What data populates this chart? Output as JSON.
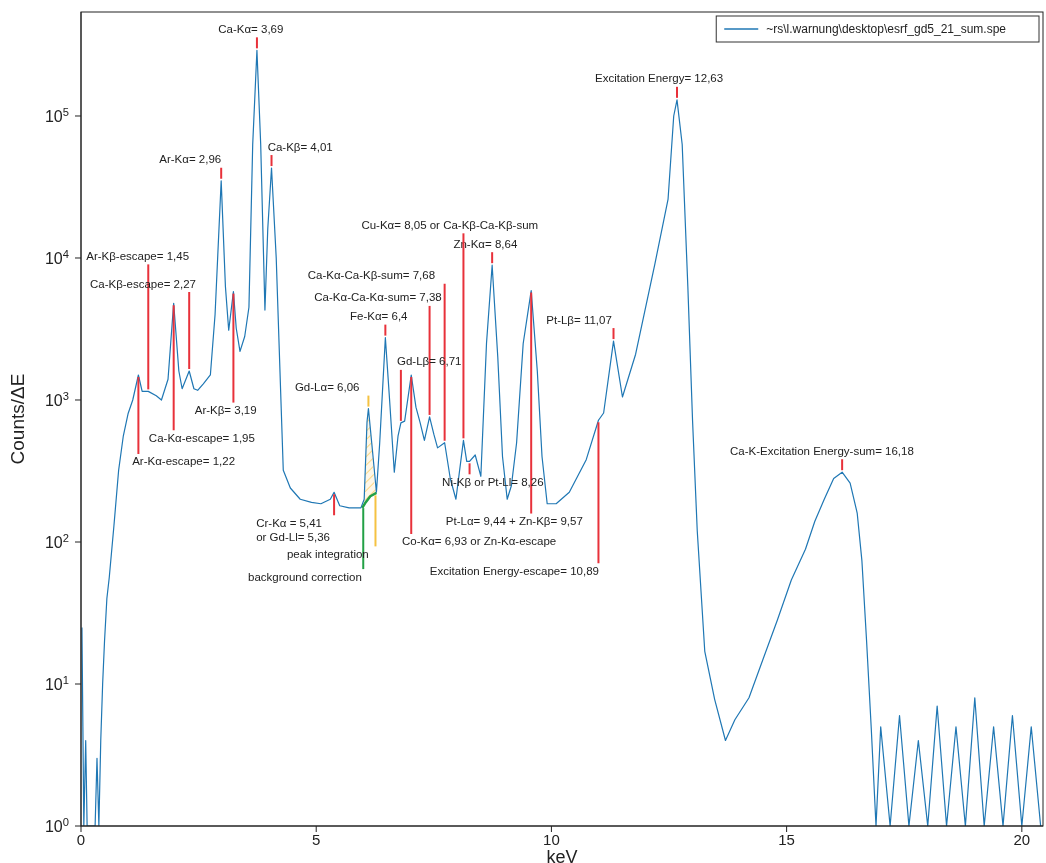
{
  "chart_data": {
    "type": "line",
    "xlabel": "keV",
    "ylabel": "Counts/ΔE",
    "log": true,
    "legend": "top right",
    "xlim": [
      0,
      20.45
    ],
    "xticks": [
      0,
      5,
      10,
      15,
      20
    ],
    "ylim": [
      1,
      540000
    ],
    "yticks": [
      {
        "value": 1,
        "label": "10$^{0}$"
      },
      {
        "value": 10,
        "label": "10$^{1}$"
      },
      {
        "value": 100,
        "label": "10$^{2}$"
      },
      {
        "value": 1000,
        "label": "10$^{3}$"
      },
      {
        "value": 10000,
        "label": "10$^{4}$"
      },
      {
        "value": 100000,
        "label": "10$^{5}$"
      }
    ],
    "series": [
      {
        "name": "~rs\\l.warnung\\desktop\\esrf_gd5_21_sum.spe",
        "color": "#1f77b4",
        "x": [
          0.02,
          0.04,
          0.06,
          0.1,
          0.13,
          0.3,
          0.34,
          0.38,
          0.42,
          0.46,
          0.5,
          0.55,
          0.6,
          0.7,
          0.8,
          0.9,
          1.0,
          1.1,
          1.22,
          1.3,
          1.43,
          1.6,
          1.71,
          1.85,
          1.97,
          2.08,
          2.15,
          2.3,
          2.4,
          2.48,
          2.6,
          2.75,
          2.85,
          2.98,
          3.07,
          3.14,
          3.24,
          3.3,
          3.38,
          3.48,
          3.57,
          3.65,
          3.74,
          3.82,
          3.91,
          3.97,
          4.05,
          4.15,
          4.25,
          4.3,
          4.45,
          4.66,
          4.9,
          5.1,
          5.3,
          5.38,
          5.5,
          5.7,
          5.95,
          6.02,
          6.08,
          6.11,
          6.18,
          6.28,
          6.35,
          6.47,
          6.56,
          6.66,
          6.74,
          6.8,
          6.88,
          7.02,
          7.12,
          7.21,
          7.3,
          7.41,
          7.5,
          7.58,
          7.73,
          7.85,
          7.97,
          8.13,
          8.2,
          8.26,
          8.38,
          8.5,
          8.62,
          8.74,
          8.86,
          8.96,
          9.06,
          9.15,
          9.26,
          9.4,
          9.57,
          9.7,
          9.8,
          9.91,
          10.1,
          10.38,
          10.74,
          11.0,
          11.11,
          11.32,
          11.51,
          11.79,
          12.2,
          12.48,
          12.6,
          12.67,
          12.78,
          12.9,
          13.0,
          13.1,
          13.26,
          13.47,
          13.7,
          13.9,
          14.2,
          14.5,
          14.8,
          15.1,
          15.4,
          15.6,
          15.8,
          16.0,
          16.18,
          16.35,
          16.5,
          16.6,
          16.7,
          16.8,
          16.9,
          17.0,
          17.2,
          17.4,
          17.6,
          17.8,
          18.0,
          18.2,
          18.4,
          18.6,
          18.8,
          19.0,
          19.2,
          19.4,
          19.6,
          19.8,
          20.0,
          20.2,
          20.4
        ],
        "values": [
          25,
          5,
          1,
          4,
          1,
          1,
          3,
          1,
          4,
          10,
          20,
          40,
          56,
          130,
          320,
          560,
          800,
          1000,
          1500,
          1150,
          1150,
          1070,
          1000,
          1400,
          4800,
          1600,
          1200,
          1600,
          1200,
          1170,
          1300,
          1500,
          4000,
          35000,
          6300,
          3100,
          5800,
          3200,
          2200,
          2800,
          4500,
          63000,
          290000,
          63000,
          4300,
          16000,
          43000,
          10000,
          1000,
          320,
          240,
          200,
          190,
          186,
          200,
          224,
          180,
          174,
          174,
          200,
          700,
          870,
          500,
          224,
          500,
          2750,
          1000,
          310,
          560,
          690,
          710,
          1500,
          890,
          690,
          520,
          760,
          575,
          460,
          500,
          280,
          200,
          520,
          370,
          370,
          410,
          290,
          2500,
          8900,
          2000,
          400,
          200,
          250,
          500,
          2500,
          5900,
          1600,
          400,
          186,
          186,
          224,
          380,
          720,
          810,
          2600,
          1050,
          2100,
          9100,
          26000,
          100000,
          130000,
          63000,
          6300,
          720,
          120,
          17,
          7.8,
          4,
          5.6,
          8,
          15,
          28,
          54,
          89,
          140,
          200,
          280,
          310,
          260,
          160,
          74,
          20,
          4.8,
          1,
          5,
          1,
          6,
          1,
          4,
          1,
          7,
          1,
          5,
          1,
          8,
          1,
          5,
          1,
          6,
          1,
          5,
          1
        ]
      },
      {
        "type": "line",
        "color": "#22a045",
        "x": [
          5.98,
          6.05,
          6.15,
          6.28
        ],
        "values": [
          174,
          190,
          210,
          222
        ]
      },
      {
        "type": "area",
        "color": "#f5c242",
        "x": [
          6.02,
          6.08,
          6.11,
          6.18,
          6.24,
          6.28
        ],
        "values": [
          200,
          700,
          870,
          500,
          250,
          225
        ]
      }
    ],
    "annotations": [
      {
        "text": "Ca-Kα= 3,69",
        "x": 3.74,
        "y": 290000
      },
      {
        "text": "Ar-Kβ= 3,19",
        "x": 3.24,
        "y": 5800
      },
      {
        "text": "Ar-Kα= 2,96",
        "x": 2.98,
        "y": 35000
      },
      {
        "text": "Ca-Kβ= 4,01",
        "x": 4.05,
        "y": 43000
      },
      {
        "text": "Ca-Kα-escape= 1,95",
        "x": 1.97,
        "y": 4800
      },
      {
        "text": "Ar-Kβ-escape= 1,45",
        "x": 1.43,
        "y": 1150
      },
      {
        "text": "Ca-Kβ-escape= 2,27",
        "x": 2.3,
        "y": 1600
      },
      {
        "text": "Ar-Kα-escape= 1,22",
        "x": 1.22,
        "y": 1500
      },
      {
        "text": "Fe-Kα= 6,4",
        "x": 6.47,
        "y": 2750
      },
      {
        "text": "Co-Kα= 6,93 or Zn-Kα-escape",
        "x": 7.02,
        "y": 1500
      },
      {
        "text": "Gd-Lα= 6,06",
        "x": 6.11,
        "y": 870
      },
      {
        "text": "Cr-Kα = 5,41\nor Gd-Ll= 5,36",
        "x": 5.38,
        "y": 224
      },
      {
        "text": "Zn-Kα= 8,64",
        "x": 8.74,
        "y": 8900
      },
      {
        "text": "Pt-Lα= 9,44 + Zn-Kβ= 9,57",
        "x": 9.57,
        "y": 5900
      },
      {
        "text": "Cu-Kα= 8,05 or Ca-Kβ-Ca-Kβ-sum",
        "x": 8.13,
        "y": 520
      },
      {
        "text": "Pt-Lβ= 11,07",
        "x": 11.32,
        "y": 2600
      },
      {
        "text": "Excitation Energy= 12,63",
        "x": 12.67,
        "y": 130000
      },
      {
        "text": "Ca-K-Excitation Energy-sum= 16,18",
        "x": 16.18,
        "y": 310
      },
      {
        "text": "Excitation Energy-escape= 10,89",
        "x": 11.0,
        "y": 720
      },
      {
        "text": "Ni-Kβ or Pt-Ll= 8,26",
        "x": 8.26,
        "y": 370
      },
      {
        "text": "Ca-Kα-Ca-Kβ-sum= 7,68",
        "x": 7.73,
        "y": 500
      },
      {
        "text": "Ca-Kα-Ca-Kα-sum= 7,38",
        "x": 7.41,
        "y": 760
      },
      {
        "text": "Gd-Lβ= 6,71",
        "x": 6.8,
        "y": 690
      },
      {
        "text": "background correction",
        "x": 6.0,
        "y": 179
      },
      {
        "text": "peak integration",
        "x": 6.26,
        "y": 220
      }
    ]
  }
}
